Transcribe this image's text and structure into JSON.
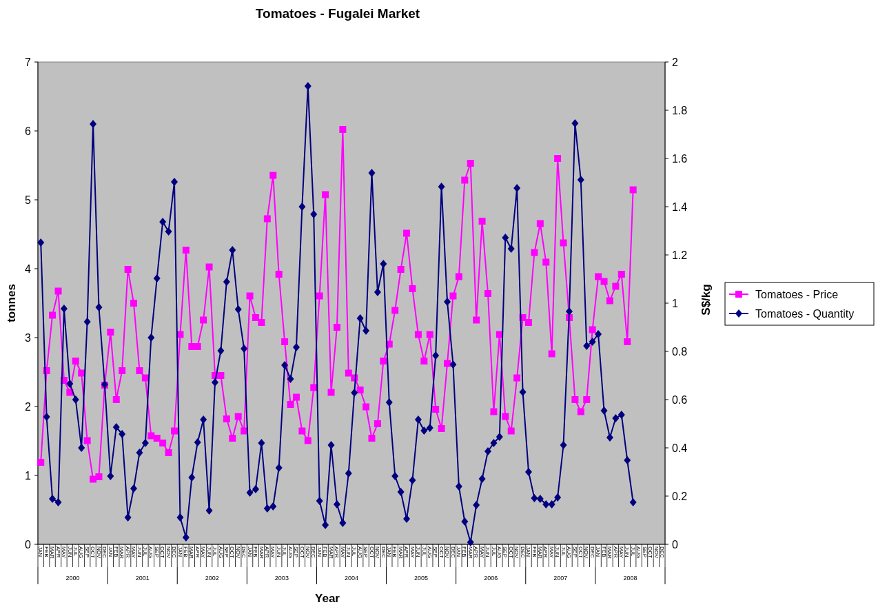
{
  "chart_data": {
    "type": "line",
    "title": "Tomatoes - Fugalei Market",
    "xlabel": "Year",
    "ylabel": "tonnes",
    "y2label": "S$/kg",
    "categories": [
      "JAN",
      "FEB",
      "MAR",
      "APR",
      "MAY",
      "JUN",
      "JUL",
      "AUG",
      "SEP",
      "OCT",
      "NOV",
      "DEC",
      "JAN",
      "FEB",
      "MAR",
      "APR",
      "MAY",
      "JUN",
      "JUL",
      "AUG",
      "SEP",
      "OCT",
      "NOV",
      "DEC",
      "JAN",
      "FEB",
      "MAR",
      "APR",
      "MAY",
      "JUN",
      "JUL",
      "AUG",
      "SEP",
      "OCT",
      "NOV",
      "DEC",
      "JAN",
      "FEB",
      "MAR",
      "APR",
      "MAY",
      "JUN",
      "JUL",
      "AUG",
      "SEP",
      "OCT",
      "NOV",
      "DEC",
      "JAN",
      "FEB",
      "MAR",
      "APR",
      "MAY",
      "JUN",
      "JUL",
      "AUG",
      "SEP",
      "OCT",
      "NOV",
      "DEC",
      "JAN",
      "FEB",
      "MAR",
      "APR",
      "MAY",
      "JUN",
      "JUL",
      "AUG",
      "SEP",
      "OCT",
      "NOV",
      "DEC",
      "JAN",
      "FEB",
      "MAR",
      "APR",
      "MAY",
      "JUN",
      "JUL",
      "AUG",
      "SEP",
      "OCT",
      "NOV",
      "DEC",
      "JAN",
      "FEB",
      "MAR",
      "APR",
      "MAY",
      "JUN",
      "JUL",
      "AUG",
      "SEP",
      "OCT",
      "NOV",
      "DEC",
      "JAN",
      "FEB",
      "MAR",
      "APR",
      "MAY",
      "JUN",
      "JUL",
      "AUG",
      "SEP",
      "OCT",
      "NOV",
      "DEC"
    ],
    "annotations": [
      "2000",
      "2001",
      "2002",
      "2003",
      "2004",
      "2005",
      "2006",
      "2007",
      "2008"
    ],
    "series": [
      {
        "name": "Tomatoes - Price",
        "color": "#ff00ff",
        "axis": "y2",
        "marker": "square",
        "values": [
          0.34,
          0.72,
          0.95,
          1.05,
          0.68,
          0.63,
          0.76,
          0.71,
          0.43,
          0.27,
          0.28,
          0.66,
          0.88,
          0.6,
          0.72,
          1.14,
          1.0,
          0.72,
          0.69,
          0.45,
          0.44,
          0.42,
          0.38,
          0.47,
          0.87,
          1.22,
          0.82,
          0.82,
          0.93,
          1.15,
          0.7,
          0.7,
          0.52,
          0.44,
          0.53,
          0.47,
          1.03,
          0.94,
          0.92,
          1.35,
          1.53,
          1.12,
          0.84,
          0.58,
          0.61,
          0.47,
          0.43,
          0.65,
          1.03,
          1.45,
          0.63,
          0.9,
          1.72,
          0.71,
          0.69,
          0.64,
          0.57,
          0.44,
          0.5,
          0.76,
          0.83,
          0.97,
          1.14,
          1.29,
          1.06,
          0.87,
          0.76,
          0.87,
          0.56,
          0.48,
          0.75,
          1.03,
          1.11,
          1.51,
          1.58,
          0.93,
          1.34,
          1.04,
          0.55,
          0.87,
          0.53,
          0.47,
          0.69,
          0.94,
          0.92,
          1.21,
          1.33,
          1.17,
          0.79,
          1.6,
          1.25,
          0.94,
          0.6,
          0.55,
          0.6,
          0.89,
          1.11,
          1.09,
          1.01,
          1.07,
          1.12,
          0.84,
          1.47,
          null,
          null,
          null,
          null,
          null
        ]
      },
      {
        "name": "Tomatoes - Quantity",
        "color": "#000080",
        "axis": "y",
        "marker": "diamond",
        "values": [
          4.38,
          1.85,
          0.66,
          0.61,
          3.42,
          2.33,
          2.1,
          1.4,
          3.23,
          6.1,
          3.44,
          2.32,
          0.99,
          1.7,
          1.6,
          0.39,
          0.81,
          1.33,
          1.47,
          3.0,
          3.86,
          4.68,
          4.54,
          5.26,
          0.39,
          0.1,
          0.97,
          1.48,
          1.81,
          0.49,
          2.35,
          2.81,
          3.81,
          4.27,
          3.41,
          2.84,
          0.75,
          0.8,
          1.47,
          0.52,
          0.55,
          1.11,
          2.6,
          2.4,
          2.86,
          4.9,
          6.65,
          4.79,
          0.63,
          0.28,
          1.44,
          0.58,
          0.31,
          1.03,
          2.2,
          3.28,
          3.1,
          5.39,
          3.66,
          4.07,
          2.06,
          0.99,
          0.76,
          0.37,
          0.93,
          1.81,
          1.65,
          1.69,
          2.74,
          5.19,
          3.52,
          2.61,
          0.84,
          0.33,
          0.03,
          0.57,
          0.95,
          1.35,
          1.47,
          1.56,
          4.45,
          4.29,
          5.17,
          2.21,
          1.05,
          0.67,
          0.66,
          0.58,
          0.58,
          0.68,
          1.44,
          3.38,
          6.11,
          5.29,
          2.88,
          2.94,
          3.05,
          1.94,
          1.55,
          1.83,
          1.88,
          1.22,
          0.61,
          null,
          null,
          null,
          null,
          null
        ]
      }
    ],
    "ylim": [
      0,
      7
    ],
    "yticks": [
      0,
      1,
      2,
      3,
      4,
      5,
      6,
      7
    ],
    "y2lim": [
      0,
      2
    ],
    "y2ticks": [
      0,
      0.2,
      0.4,
      0.6,
      0.8,
      1,
      1.2,
      1.4,
      1.6,
      1.8,
      2
    ],
    "legend": "right",
    "line_style": "solid",
    "grid": false
  }
}
